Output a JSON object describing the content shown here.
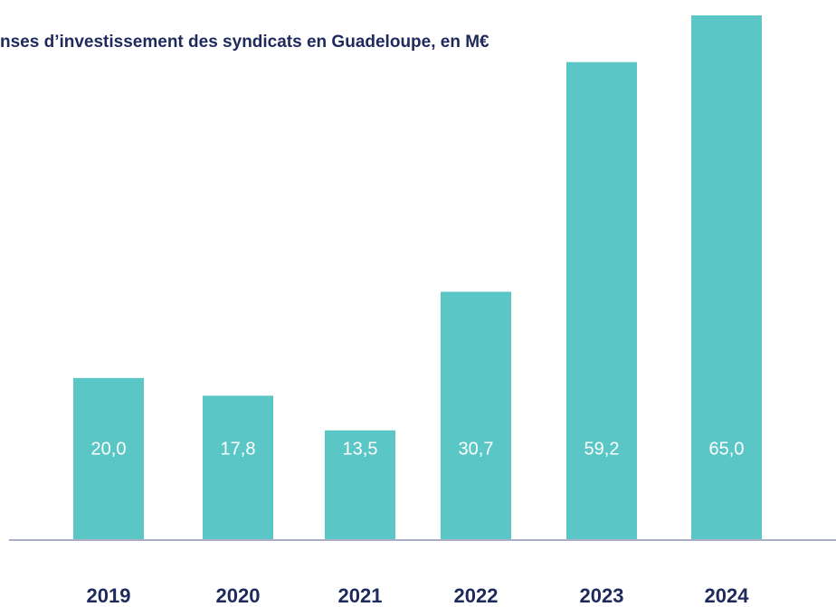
{
  "chart_data": {
    "type": "bar",
    "title": "nses d’investissement des syndicats en Guadeloupe, en M€",
    "categories": [
      "2019",
      "2020",
      "2021",
      "2022",
      "2023",
      "2024"
    ],
    "values": [
      20.0,
      17.8,
      13.5,
      30.7,
      59.2,
      65.0
    ],
    "value_labels": [
      "20,0",
      "17,8",
      "13,5",
      "30,7",
      "59,2",
      "65,0"
    ],
    "color": "#5bc6c6"
  }
}
